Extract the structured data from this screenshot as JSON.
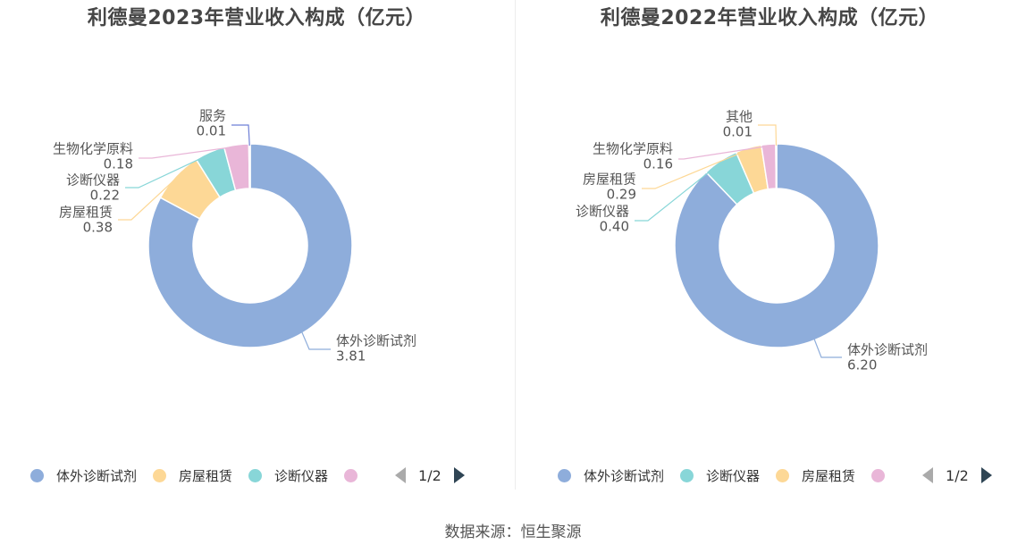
{
  "chart_data": [
    {
      "type": "pie",
      "title": "利德曼2023年营业收入构成（亿元）",
      "slices": [
        {
          "name": "体外诊断试剂",
          "value": "3.81",
          "color": "#8eaddb"
        },
        {
          "name": "房屋租赁",
          "value": "0.38",
          "color": "#fdd896"
        },
        {
          "name": "诊断仪器",
          "value": "0.22",
          "color": "#88d6d8"
        },
        {
          "name": "生物化学原料",
          "value": "0.18",
          "color": "#e9b6d8"
        },
        {
          "name": "服务",
          "value": "0.01",
          "color": "#6e7fd6"
        }
      ],
      "legend": {
        "items": [
          {
            "name": "体外诊断试剂",
            "color": "#8eaddb"
          },
          {
            "name": "房屋租赁",
            "color": "#fdd896"
          },
          {
            "name": "诊断仪器",
            "color": "#88d6d8"
          },
          {
            "name": "",
            "color": "#e9b6d8"
          }
        ],
        "page": "1/2"
      }
    },
    {
      "type": "pie",
      "title": "利德曼2022年营业收入构成（亿元）",
      "slices": [
        {
          "name": "体外诊断试剂",
          "value": "6.20",
          "color": "#8eaddb"
        },
        {
          "name": "诊断仪器",
          "value": "0.40",
          "color": "#88d6d8"
        },
        {
          "name": "房屋租赁",
          "value": "0.29",
          "color": "#fdd896"
        },
        {
          "name": "生物化学原料",
          "value": "0.16",
          "color": "#e9b6d8"
        },
        {
          "name": "其他",
          "value": "0.01",
          "color": "#fdd896"
        }
      ],
      "legend": {
        "items": [
          {
            "name": "体外诊断试剂",
            "color": "#8eaddb"
          },
          {
            "name": "诊断仪器",
            "color": "#88d6d8"
          },
          {
            "name": "房屋租赁",
            "color": "#fdd896"
          },
          {
            "name": "",
            "color": "#e9b6d8"
          }
        ],
        "page": "1/2"
      }
    }
  ],
  "source": "数据来源：恒生聚源"
}
